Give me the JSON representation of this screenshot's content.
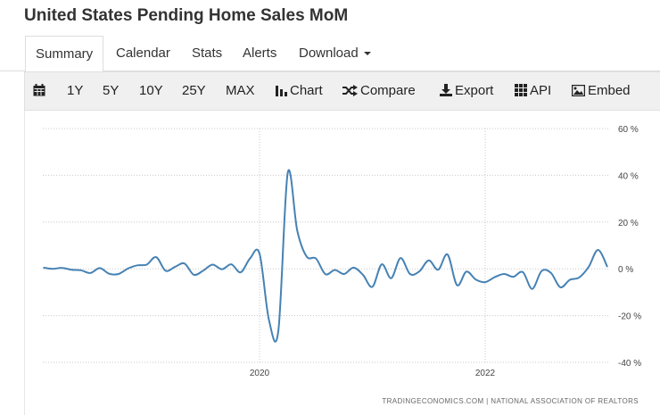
{
  "page": {
    "title": "United States Pending Home Sales MoM"
  },
  "tabs": [
    {
      "label": "Summary",
      "active": true
    },
    {
      "label": "Calendar"
    },
    {
      "label": "Stats"
    },
    {
      "label": "Alerts"
    },
    {
      "label": "Download"
    }
  ],
  "toolbar": {
    "calendar_icon": "calendar-icon",
    "ranges": [
      "1Y",
      "5Y",
      "10Y",
      "25Y",
      "MAX"
    ],
    "chart_label": "Chart",
    "compare_label": "Compare",
    "export_label": "Export",
    "api_label": "API",
    "embed_label": "Embed"
  },
  "chart_data": {
    "type": "line",
    "title": "",
    "xlabel": "",
    "ylabel": "",
    "ylim": [
      -40,
      60
    ],
    "y_ticks": [
      60,
      40,
      20,
      0,
      -20,
      -40
    ],
    "y_tick_labels": [
      "60 %",
      "40 %",
      "20 %",
      "0 %",
      "-20 %",
      "-40 %"
    ],
    "x_tick_labels": [
      "2020",
      "2022"
    ],
    "grid": true,
    "line_color": "#4682b4",
    "source": "TRADINGECONOMICS.COM  |  NATIONAL ASSOCIATION OF REALTORS",
    "series": [
      {
        "x": [
          "2018-02",
          "2018-03",
          "2018-04",
          "2018-05",
          "2018-06",
          "2018-07",
          "2018-08",
          "2018-09",
          "2018-10",
          "2018-11",
          "2018-12",
          "2019-01",
          "2019-02",
          "2019-03",
          "2019-04",
          "2019-05",
          "2019-06",
          "2019-07",
          "2019-08",
          "2019-09",
          "2019-10",
          "2019-11",
          "2019-12",
          "2020-01",
          "2020-02",
          "2020-03",
          "2020-04",
          "2020-05",
          "2020-06",
          "2020-07",
          "2020-08",
          "2020-09",
          "2020-10",
          "2020-11",
          "2020-12",
          "2021-01",
          "2021-02",
          "2021-03",
          "2021-04",
          "2021-05",
          "2021-06",
          "2021-07",
          "2021-08",
          "2021-09",
          "2021-10",
          "2021-11",
          "2021-12",
          "2022-01",
          "2022-02",
          "2022-03",
          "2022-04",
          "2022-05",
          "2022-06",
          "2022-07",
          "2022-08",
          "2022-09",
          "2022-10",
          "2022-11",
          "2022-12",
          "2023-01",
          "2023-02",
          "2023-03"
        ],
        "values": [
          0.5,
          0.0,
          0.4,
          -0.4,
          -0.6,
          -1.8,
          0.3,
          -2.1,
          -2.2,
          0.1,
          1.5,
          1.8,
          5.0,
          -0.8,
          0.8,
          2.3,
          -2.5,
          -0.8,
          1.8,
          -0.2,
          1.9,
          -1.5,
          4.5,
          6.5,
          -21.8,
          -26.5,
          41.0,
          16.5,
          5.3,
          4.4,
          -2.3,
          -0.5,
          -2.2,
          0.5,
          -2.6,
          -7.7,
          1.9,
          -4.0,
          4.6,
          -2.2,
          -1.1,
          3.6,
          -0.4,
          6.1,
          -7.0,
          -1.2,
          -4.6,
          -5.7,
          -3.6,
          -2.2,
          -3.4,
          -1.4,
          -8.6,
          -0.9,
          -1.8,
          -7.9,
          -4.7,
          -3.7,
          0.8,
          8.1,
          0.8,
          null
        ]
      }
    ]
  }
}
